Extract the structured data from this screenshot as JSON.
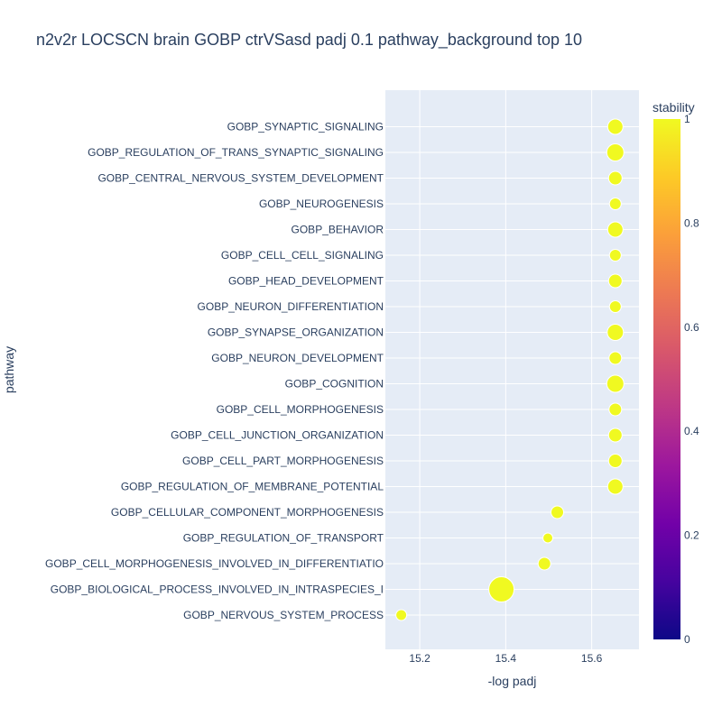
{
  "chart_data": {
    "type": "scatter",
    "title": "n2v2r LOCSCN brain GOBP ctrVSasd padj 0.1 pathway_background top 10",
    "xlabel": "-log padj",
    "ylabel": "pathway",
    "xlim": [
      15.12,
      15.71
    ],
    "xticks": [
      15.2,
      15.4,
      15.6
    ],
    "xtick_labels": [
      "15.2",
      "15.4",
      "15.6"
    ],
    "grid": true,
    "plot_background": "#E5ECF6",
    "colorbar": {
      "title": "stability",
      "range": [
        0,
        1
      ],
      "ticks": [
        0,
        0.2,
        0.4,
        0.6,
        0.8,
        1
      ],
      "tick_labels": [
        "0",
        "0.2",
        "0.4",
        "0.6",
        "0.8",
        "1"
      ],
      "colorscale": [
        "#0d0887",
        "#46039f",
        "#7201a8",
        "#9c179e",
        "#bd3786",
        "#d8576b",
        "#ed7953",
        "#fb9f3a",
        "#fdca26",
        "#f0f921"
      ]
    },
    "points": [
      {
        "pathway": "GOBP_SYNAPTIC_SIGNALING",
        "x": 15.655,
        "stability": 1,
        "size": 17
      },
      {
        "pathway": "GOBP_REGULATION_OF_TRANS_SYNAPTIC_SIGNALING",
        "x": 15.655,
        "stability": 1,
        "size": 19
      },
      {
        "pathway": "GOBP_CENTRAL_NERVOUS_SYSTEM_DEVELOPMENT",
        "x": 15.655,
        "stability": 1,
        "size": 15
      },
      {
        "pathway": "GOBP_NEUROGENESIS",
        "x": 15.655,
        "stability": 1,
        "size": 13
      },
      {
        "pathway": "GOBP_BEHAVIOR",
        "x": 15.655,
        "stability": 1,
        "size": 17
      },
      {
        "pathway": "GOBP_CELL_CELL_SIGNALING",
        "x": 15.655,
        "stability": 1,
        "size": 13
      },
      {
        "pathway": "GOBP_HEAD_DEVELOPMENT",
        "x": 15.655,
        "stability": 1,
        "size": 15
      },
      {
        "pathway": "GOBP_NEURON_DIFFERENTIATION",
        "x": 15.655,
        "stability": 1,
        "size": 13
      },
      {
        "pathway": "GOBP_SYNAPSE_ORGANIZATION",
        "x": 15.655,
        "stability": 1,
        "size": 18
      },
      {
        "pathway": "GOBP_NEURON_DEVELOPMENT",
        "x": 15.655,
        "stability": 1,
        "size": 14
      },
      {
        "pathway": "GOBP_COGNITION",
        "x": 15.655,
        "stability": 1,
        "size": 19
      },
      {
        "pathway": "GOBP_CELL_MORPHOGENESIS",
        "x": 15.655,
        "stability": 1,
        "size": 14
      },
      {
        "pathway": "GOBP_CELL_JUNCTION_ORGANIZATION",
        "x": 15.655,
        "stability": 1,
        "size": 15
      },
      {
        "pathway": "GOBP_CELL_PART_MORPHOGENESIS",
        "x": 15.655,
        "stability": 1,
        "size": 15
      },
      {
        "pathway": "GOBP_REGULATION_OF_MEMBRANE_POTENTIAL",
        "x": 15.655,
        "stability": 1,
        "size": 17
      },
      {
        "pathway": "GOBP_CELLULAR_COMPONENT_MORPHOGENESIS",
        "x": 15.52,
        "stability": 1,
        "size": 14
      },
      {
        "pathway": "GOBP_REGULATION_OF_TRANSPORT",
        "x": 15.498,
        "stability": 1,
        "size": 11
      },
      {
        "pathway": "GOBP_CELL_MORPHOGENESIS_INVOLVED_IN_DIFFERENTIATIO",
        "x": 15.49,
        "stability": 1,
        "size": 14
      },
      {
        "pathway": "GOBP_BIOLOGICAL_PROCESS_INVOLVED_IN_INTRASPECIES_I",
        "x": 15.39,
        "stability": 1,
        "size": 28
      },
      {
        "pathway": "GOBP_NERVOUS_SYSTEM_PROCESS",
        "x": 15.157,
        "stability": 1,
        "size": 12
      }
    ]
  }
}
